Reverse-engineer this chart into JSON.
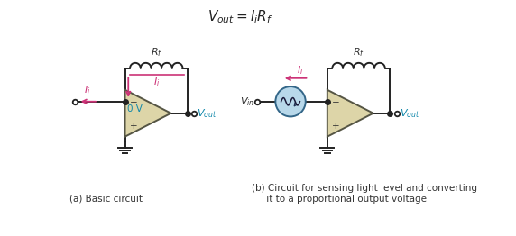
{
  "title": "$V_{out} = I_iR_f$",
  "title_fontsize": 11,
  "op_amp_fill": "#ddd5a8",
  "op_amp_edge": "#555544",
  "wire_color": "#222222",
  "pink_color": "#cc3377",
  "cyan_color": "#1188aa",
  "caption_a": "(a) Basic circuit",
  "caption_b": "(b) Circuit for sensing light level and converting\n     it to a proportional output voltage",
  "photo_fill": "#b8d8ea",
  "photo_edge": "#336688"
}
